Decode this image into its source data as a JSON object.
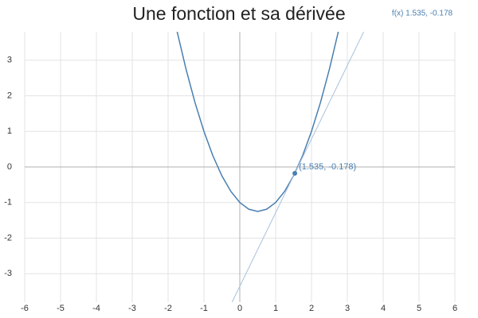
{
  "chart_data": {
    "type": "line",
    "title": "Une fonction et sa dérivée",
    "readout": "f(x) 1.535, -0.178",
    "xlim": [
      -6,
      6
    ],
    "ylim": [
      -3.8,
      3.8
    ],
    "xticks": [
      -6,
      -5,
      -4,
      -3,
      -2,
      -1,
      0,
      1,
      2,
      3,
      4,
      5,
      6
    ],
    "yticks": [
      -3,
      -2,
      -1,
      0,
      1,
      2,
      3
    ],
    "grid": true,
    "series": [
      {
        "color": "#4a7fb0",
        "x": [
          -1.75,
          -1.5,
          -1.25,
          -1,
          -0.75,
          -0.5,
          -0.25,
          0,
          0.25,
          0.5,
          0.75,
          1,
          1.25,
          1.5,
          1.75,
          2,
          2.25,
          2.5,
          2.75
        ],
        "values": [
          3.8125,
          2.75,
          1.8125,
          1,
          0.3125,
          -0.25,
          -0.6875,
          -1,
          -1.1875,
          -1.25,
          -1.1875,
          -1,
          -0.6875,
          -0.25,
          0.3125,
          1,
          1.8125,
          2.75,
          3.8125
        ]
      },
      {
        "color": "#a9c1dd",
        "x": [
          -0.215,
          3.457
        ],
        "values": [
          -3.8,
          3.8
        ]
      }
    ],
    "point": {
      "x": 1.535,
      "y": -0.178,
      "label": "(1.535, -0.178)",
      "color": "#4a7fb0"
    }
  }
}
